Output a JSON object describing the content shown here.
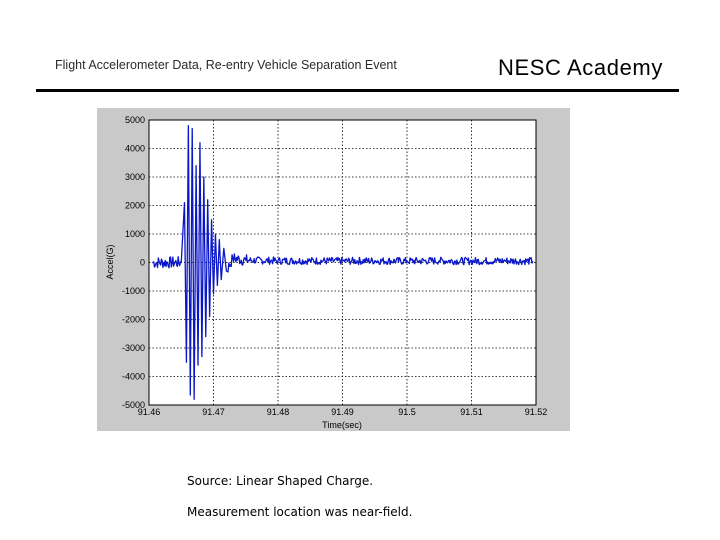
{
  "header": {
    "title": "Flight Accelerometer Data, Re-entry Vehicle Separation Event",
    "brand": "NESC Academy"
  },
  "captions": {
    "source": "Source:  Linear Shaped Charge.",
    "location": "Measurement location was near-field."
  },
  "colors": {
    "series": "#0a17c8",
    "panel_background": "#c9c9c9",
    "plot_background": "#ffffff",
    "grid": "#000000"
  },
  "chart_data": {
    "type": "line",
    "title": "",
    "xlabel": "Time(sec)",
    "ylabel": "Accel(G)",
    "xlim": [
      91.46,
      91.52
    ],
    "ylim": [
      -5000,
      5000
    ],
    "x_ticks": [
      91.46,
      91.47,
      91.48,
      91.49,
      91.5,
      91.51,
      91.52
    ],
    "x_tick_labels": [
      "91.46",
      "91.47",
      "91.48",
      "91.49",
      "91.5",
      "91.51",
      "91.52"
    ],
    "y_ticks": [
      -5000,
      -4000,
      -3000,
      -2000,
      -1000,
      0,
      1000,
      2000,
      3000,
      4000,
      5000
    ],
    "y_tick_labels": [
      "-5000",
      "-4000",
      "-3000",
      "-2000",
      "-1000",
      "0",
      "1000",
      "2000",
      "3000",
      "4000",
      "5000"
    ],
    "grid": "dotted",
    "legend": "none",
    "series": [
      {
        "x": [
          91.4605,
          91.465,
          91.4655,
          91.4658,
          91.4661,
          91.4664,
          91.4667,
          91.467,
          91.4673,
          91.4676,
          91.4679,
          91.4682,
          91.4685,
          91.4688,
          91.4691,
          91.4694,
          91.4697,
          91.47,
          91.4703,
          91.4706,
          91.4709,
          91.4712,
          91.4716,
          91.472,
          91.473,
          91.475,
          91.48,
          91.485,
          91.49,
          91.495,
          91.5,
          91.505,
          91.51,
          91.515,
          91.5195
        ],
        "y": [
          0,
          0,
          2100,
          -3500,
          4800,
          -4650,
          4700,
          -4800,
          3400,
          -3600,
          4200,
          -3300,
          3000,
          -2600,
          2200,
          -1900,
          1500,
          -1100,
          1000,
          -800,
          800,
          -600,
          500,
          -300,
          150,
          80,
          60,
          60,
          50,
          60,
          50,
          60,
          50,
          60,
          50
        ]
      }
    ]
  }
}
